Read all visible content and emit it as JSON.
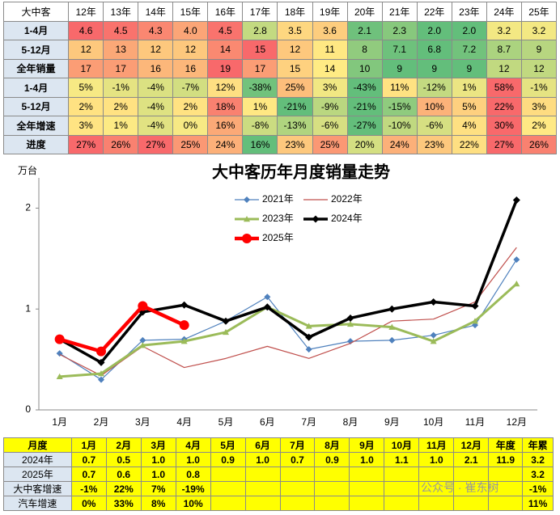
{
  "top_table": {
    "header": [
      "大中客",
      "12年",
      "13年",
      "14年",
      "15年",
      "16年",
      "17年",
      "18年",
      "19年",
      "20年",
      "21年",
      "22年",
      "23年",
      "24年",
      "25年"
    ],
    "rows": [
      [
        "1-4月",
        "4.6",
        "4.5",
        "4.3",
        "4.0",
        "4.5",
        "2.8",
        "3.5",
        "3.6",
        "2.1",
        "2.3",
        "2.0",
        "2.0",
        "3.2",
        "3.2"
      ],
      [
        "5-12月",
        "12",
        "13",
        "12",
        "12",
        "14",
        "15",
        "12",
        "11",
        "8",
        "7.1",
        "6.8",
        "7.2",
        "8.7",
        "9"
      ],
      [
        "全年销量",
        "17",
        "17",
        "16",
        "16",
        "19",
        "17",
        "15",
        "14",
        "10",
        "9",
        "9",
        "9",
        "12",
        "12"
      ],
      [
        "1-4月",
        "5%",
        "-1%",
        "-4%",
        "-7%",
        "12%",
        "-38%",
        "25%",
        "3%",
        "-43%",
        "11%",
        "-12%",
        "1%",
        "58%",
        "-1%"
      ],
      [
        "5-12月",
        "2%",
        "2%",
        "-4%",
        "2%",
        "18%",
        "1%",
        "-21%",
        "-9%",
        "-21%",
        "-15%",
        "10%",
        "5%",
        "22%",
        "3%"
      ],
      [
        "全年增速",
        "3%",
        "1%",
        "-4%",
        "0%",
        "16%",
        "-8%",
        "-13%",
        "-6%",
        "-27%",
        "-10%",
        "-6%",
        "4%",
        "30%",
        "2%"
      ],
      [
        "进度",
        "27%",
        "26%",
        "27%",
        "25%",
        "24%",
        "16%",
        "23%",
        "25%",
        "20%",
        "24%",
        "23%",
        "22%",
        "27%",
        "26%"
      ]
    ]
  },
  "chart_data": {
    "type": "line",
    "title": "大中客历年月度销量走势",
    "y_label": "万台",
    "categories": [
      "1月",
      "2月",
      "3月",
      "4月",
      "5月",
      "6月",
      "7月",
      "8月",
      "9月",
      "10月",
      "11月",
      "12月"
    ],
    "series": [
      {
        "name": "2021年",
        "color": "#4f81bd",
        "marker": "diamond",
        "width": 1.2,
        "values": [
          0.56,
          0.3,
          0.69,
          0.7,
          0.88,
          1.12,
          0.6,
          0.68,
          0.69,
          0.74,
          0.84,
          1.49
        ]
      },
      {
        "name": "2022年",
        "color": "#c0504d",
        "marker": "none",
        "width": 1.2,
        "values": [
          0.55,
          0.34,
          0.63,
          0.42,
          0.51,
          0.63,
          0.51,
          0.66,
          0.88,
          0.9,
          1.07,
          1.61
        ]
      },
      {
        "name": "2023年",
        "color": "#9bbb59",
        "marker": "triangle",
        "width": 3,
        "values": [
          0.33,
          0.36,
          0.64,
          0.68,
          0.77,
          1.02,
          0.83,
          0.85,
          0.82,
          0.68,
          0.88,
          1.25
        ]
      },
      {
        "name": "2024年",
        "color": "#000000",
        "marker": "diamond",
        "width": 3.5,
        "values": [
          0.7,
          0.47,
          0.97,
          1.04,
          0.88,
          1.02,
          0.72,
          0.91,
          1.0,
          1.07,
          1.03,
          2.08
        ]
      },
      {
        "name": "2025年",
        "color": "#ff0000",
        "marker": "circle",
        "width": 4.5,
        "values": [
          0.7,
          0.58,
          1.03,
          0.84,
          null,
          null,
          null,
          null,
          null,
          null,
          null,
          null
        ]
      }
    ],
    "ylim": [
      0,
      2.3
    ],
    "yticks": [
      0,
      1,
      2
    ],
    "grid": false
  },
  "bottom_table": {
    "header": [
      "月度",
      "1月",
      "2月",
      "3月",
      "4月",
      "5月",
      "6月",
      "7月",
      "8月",
      "9月",
      "10月",
      "11月",
      "12月",
      "年度",
      "年累"
    ],
    "rows": [
      [
        "2024年",
        "0.7",
        "0.5",
        "1.0",
        "1.0",
        "0.9",
        "1.0",
        "0.7",
        "0.9",
        "1.0",
        "1.1",
        "1.0",
        "2.1",
        "11.9",
        "3.2"
      ],
      [
        "2025年",
        "0.7",
        "0.6",
        "1.0",
        "0.8",
        null,
        null,
        null,
        null,
        null,
        null,
        null,
        null,
        null,
        "3.2"
      ],
      [
        "大中客增速",
        "-1%",
        "22%",
        "7%",
        "-19%",
        null,
        null,
        null,
        null,
        null,
        null,
        null,
        null,
        null,
        "-1%"
      ],
      [
        "汽车增速",
        "0%",
        "33%",
        "8%",
        "10%",
        null,
        null,
        null,
        null,
        null,
        null,
        null,
        null,
        null,
        "11%"
      ]
    ]
  },
  "watermark": "公众号 · 崔东树"
}
